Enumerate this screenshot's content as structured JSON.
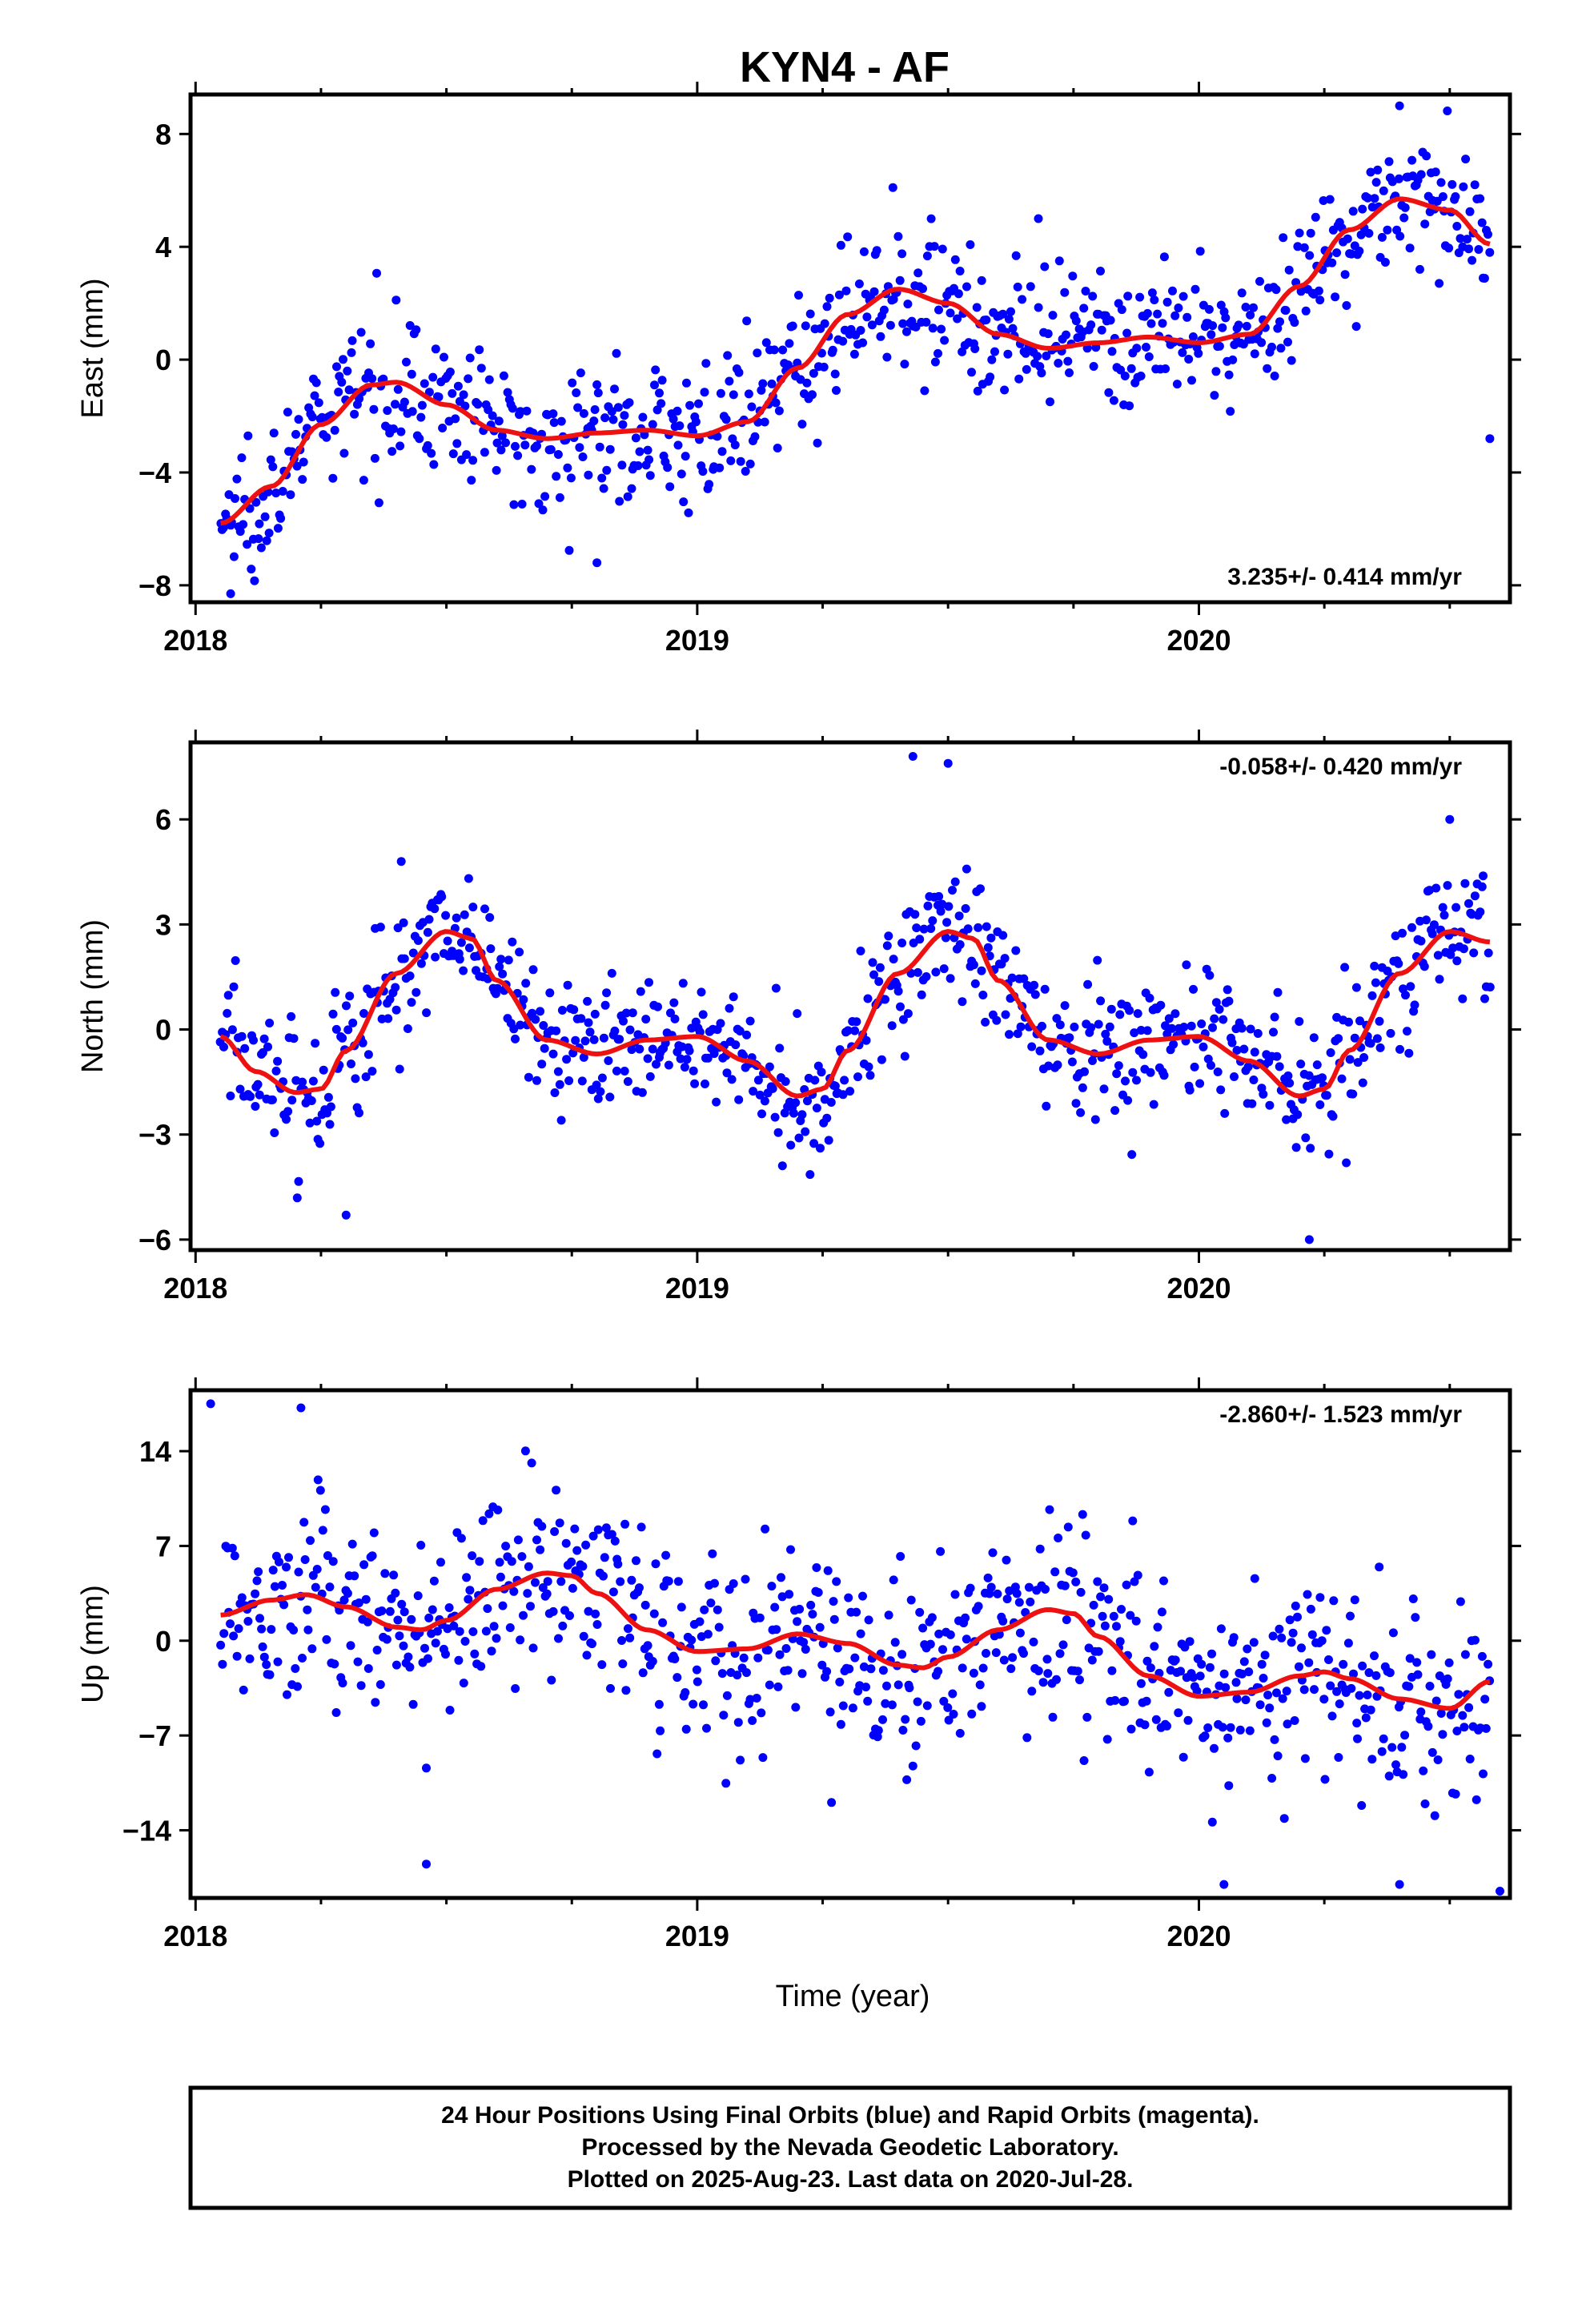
{
  "title": "KYN4 - AF",
  "colors": {
    "points": "#0000ff",
    "model": "#ee1111",
    "frame": "#000000"
  },
  "x_axis_label": "Time (year)",
  "footer": {
    "line1": "24 Hour Positions Using Final Orbits (blue) and Rapid Orbits (magenta).",
    "line2": "Processed by the Nevada Geodetic Laboratory.",
    "line3": "Plotted on 2025-Aug-23. Last data on 2020-Jul-28."
  },
  "chart_data": [
    {
      "type": "scatter",
      "id": "east",
      "ylabel": "East (mm)",
      "rate_label": "3.235+/- 0.414 mm/yr",
      "rate_position": "bottom-right",
      "xlim": [
        2017.99,
        2020.62
      ],
      "ylim": [
        -8.6,
        9.4
      ],
      "xticks": [
        2018,
        2019,
        2020
      ],
      "xtick_labels": [
        "2018",
        "2019",
        "2020"
      ],
      "yticks": [
        -8,
        -4,
        0,
        4,
        8
      ],
      "ytick_labels": [
        "−8",
        "−4",
        "0",
        "4",
        "8"
      ],
      "series": [
        {
          "kind": "trend_model",
          "x": [
            2018.05,
            2018.15,
            2018.25,
            2018.35,
            2018.4,
            2018.5,
            2018.6,
            2018.7,
            2018.8,
            2018.9,
            2019.0,
            2019.1,
            2019.2,
            2019.3,
            2019.4,
            2019.5,
            2019.6,
            2019.7,
            2019.8,
            2019.9,
            2020.0,
            2020.1,
            2020.2,
            2020.3,
            2020.4,
            2020.5,
            2020.58
          ],
          "y": [
            -5.8,
            -4.5,
            -2.3,
            -0.9,
            -0.8,
            -1.6,
            -2.5,
            -2.8,
            -2.6,
            -2.5,
            -2.7,
            -2.2,
            -0.3,
            1.6,
            2.5,
            2.0,
            0.9,
            0.4,
            0.6,
            0.8,
            0.6,
            0.9,
            2.6,
            4.6,
            5.7,
            5.3,
            4.1
          ]
        },
        {
          "kind": "daily_positions",
          "noise_sd": 1.2,
          "outliers": [
            [
              2018.07,
              -8.3
            ],
            [
              2018.8,
              -7.2
            ],
            [
              2020.58,
              -2.8
            ],
            [
              2020.4,
              9.0
            ],
            [
              2019.39,
              6.1
            ],
            [
              2019.68,
              5.0
            ]
          ]
        }
      ]
    },
    {
      "type": "scatter",
      "id": "north",
      "ylabel": "North (mm)",
      "rate_label": "-0.058+/- 0.420 mm/yr",
      "rate_position": "top-right",
      "xlim": [
        2017.99,
        2020.62
      ],
      "ylim": [
        -6.3,
        8.2
      ],
      "xticks": [
        2018,
        2019,
        2020
      ],
      "xtick_labels": [
        "2018",
        "2019",
        "2020"
      ],
      "yticks": [
        -6,
        -3,
        0,
        3,
        6
      ],
      "ytick_labels": [
        "−6",
        "−3",
        "0",
        "3",
        "6"
      ],
      "series": [
        {
          "kind": "trend_model",
          "x": [
            2018.05,
            2018.12,
            2018.2,
            2018.25,
            2018.3,
            2018.4,
            2018.5,
            2018.55,
            2018.6,
            2018.7,
            2018.8,
            2018.9,
            2019.0,
            2019.1,
            2019.2,
            2019.25,
            2019.3,
            2019.4,
            2019.5,
            2019.55,
            2019.6,
            2019.7,
            2019.8,
            2019.9,
            2020.0,
            2020.1,
            2020.2,
            2020.25,
            2020.3,
            2020.4,
            2020.5,
            2020.58
          ],
          "y": [
            -0.2,
            -1.2,
            -1.8,
            -1.7,
            -0.6,
            1.6,
            2.8,
            2.6,
            1.4,
            -0.3,
            -0.7,
            -0.3,
            -0.2,
            -0.9,
            -1.9,
            -1.7,
            -0.6,
            1.6,
            2.8,
            2.6,
            1.4,
            -0.3,
            -0.7,
            -0.3,
            -0.2,
            -0.9,
            -1.9,
            -1.7,
            -0.6,
            1.6,
            2.8,
            2.5
          ]
        },
        {
          "kind": "daily_positions",
          "noise_sd": 1.0,
          "outliers": [
            [
              2019.43,
              7.8
            ],
            [
              2019.5,
              7.6
            ],
            [
              2018.3,
              -5.3
            ],
            [
              2020.22,
              -6.0
            ],
            [
              2020.5,
              6.0
            ],
            [
              2018.41,
              4.8
            ]
          ]
        }
      ]
    },
    {
      "type": "scatter",
      "id": "up",
      "ylabel": "Up (mm)",
      "rate_label": "-2.860+/- 1.523 mm/yr",
      "rate_position": "top-right",
      "xlim": [
        2017.99,
        2020.62
      ],
      "ylim": [
        -19,
        18.5
      ],
      "xticks": [
        2018,
        2019,
        2020
      ],
      "xtick_labels": [
        "2018",
        "2019",
        "2020"
      ],
      "yticks": [
        -14,
        -7,
        0,
        7,
        14
      ],
      "ytick_labels": [
        "−14",
        "−7",
        "0",
        "7",
        "14"
      ],
      "series": [
        {
          "kind": "trend_model",
          "x": [
            2018.05,
            2018.15,
            2018.22,
            2018.3,
            2018.4,
            2018.45,
            2018.5,
            2018.6,
            2018.7,
            2018.75,
            2018.8,
            2018.9,
            2019.0,
            2019.1,
            2019.2,
            2019.3,
            2019.4,
            2019.45,
            2019.5,
            2019.6,
            2019.7,
            2019.75,
            2019.8,
            2019.9,
            2020.0,
            2020.1,
            2020.2,
            2020.25,
            2020.3,
            2020.4,
            2020.5,
            2020.58
          ],
          "y": [
            1.9,
            3.0,
            3.4,
            2.5,
            1.0,
            0.8,
            1.5,
            3.8,
            5.0,
            4.8,
            3.5,
            0.8,
            -0.8,
            -0.6,
            0.5,
            -0.2,
            -1.8,
            -2.0,
            -1.2,
            0.8,
            2.3,
            2.0,
            0.3,
            -2.6,
            -4.1,
            -3.8,
            -2.6,
            -2.3,
            -2.8,
            -4.3,
            -5.0,
            -3.0
          ]
        },
        {
          "kind": "daily_positions",
          "noise_sd": 3.6,
          "outliers": [
            [
              2018.03,
              17.5
            ],
            [
              2018.21,
              17.2
            ],
            [
              2018.46,
              -16.5
            ],
            [
              2020.05,
              -18.0
            ],
            [
              2020.6,
              -18.5
            ],
            [
              2020.4,
              -18.0
            ]
          ]
        }
      ]
    }
  ]
}
